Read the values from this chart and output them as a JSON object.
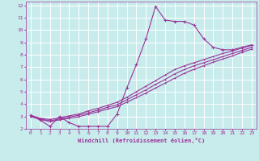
{
  "xlabel": "Windchill (Refroidissement éolien,°C)",
  "bg_color": "#c8ecec",
  "grid_color": "#ffffff",
  "line_color": "#993399",
  "xlim": [
    -0.5,
    23.5
  ],
  "ylim": [
    2,
    12.3
  ],
  "xticks": [
    0,
    1,
    2,
    3,
    4,
    5,
    6,
    7,
    8,
    9,
    10,
    11,
    12,
    13,
    14,
    15,
    16,
    17,
    18,
    19,
    20,
    21,
    22,
    23
  ],
  "yticks": [
    2,
    3,
    4,
    5,
    6,
    7,
    8,
    9,
    10,
    11,
    12
  ],
  "series": [
    {
      "x": [
        0,
        1,
        2,
        3,
        4,
        5,
        6,
        7,
        8,
        9,
        10,
        11,
        12,
        13,
        14,
        15,
        16,
        17,
        18,
        19,
        20,
        21,
        22,
        23
      ],
      "y": [
        3.1,
        2.7,
        2.2,
        3.0,
        2.5,
        2.2,
        2.2,
        2.2,
        2.2,
        3.2,
        5.3,
        7.2,
        9.3,
        11.9,
        10.8,
        10.7,
        10.7,
        10.4,
        9.3,
        8.6,
        8.4,
        8.4,
        8.6,
        8.8
      ]
    },
    {
      "x": [
        0,
        1,
        2,
        3,
        4,
        5,
        6,
        7,
        8,
        9,
        10,
        11,
        12,
        13,
        14,
        15,
        16,
        17,
        18,
        19,
        20,
        21,
        22,
        23
      ],
      "y": [
        3.1,
        2.85,
        2.75,
        2.9,
        3.05,
        3.2,
        3.45,
        3.65,
        3.9,
        4.15,
        4.55,
        5.0,
        5.45,
        5.9,
        6.35,
        6.8,
        7.1,
        7.35,
        7.6,
        7.85,
        8.1,
        8.3,
        8.55,
        8.75
      ]
    },
    {
      "x": [
        0,
        1,
        2,
        3,
        4,
        5,
        6,
        7,
        8,
        9,
        10,
        11,
        12,
        13,
        14,
        15,
        16,
        17,
        18,
        19,
        20,
        21,
        22,
        23
      ],
      "y": [
        3.0,
        2.8,
        2.65,
        2.8,
        2.95,
        3.1,
        3.3,
        3.5,
        3.75,
        3.95,
        4.35,
        4.75,
        5.15,
        5.6,
        6.0,
        6.45,
        6.8,
        7.1,
        7.35,
        7.6,
        7.85,
        8.1,
        8.35,
        8.6
      ]
    },
    {
      "x": [
        0,
        1,
        2,
        3,
        4,
        5,
        6,
        7,
        8,
        9,
        10,
        11,
        12,
        13,
        14,
        15,
        16,
        17,
        18,
        19,
        20,
        21,
        22,
        23
      ],
      "y": [
        3.0,
        2.75,
        2.6,
        2.72,
        2.85,
        2.98,
        3.18,
        3.38,
        3.6,
        3.8,
        4.15,
        4.52,
        4.9,
        5.3,
        5.7,
        6.1,
        6.5,
        6.82,
        7.1,
        7.4,
        7.65,
        7.9,
        8.2,
        8.45
      ]
    }
  ]
}
